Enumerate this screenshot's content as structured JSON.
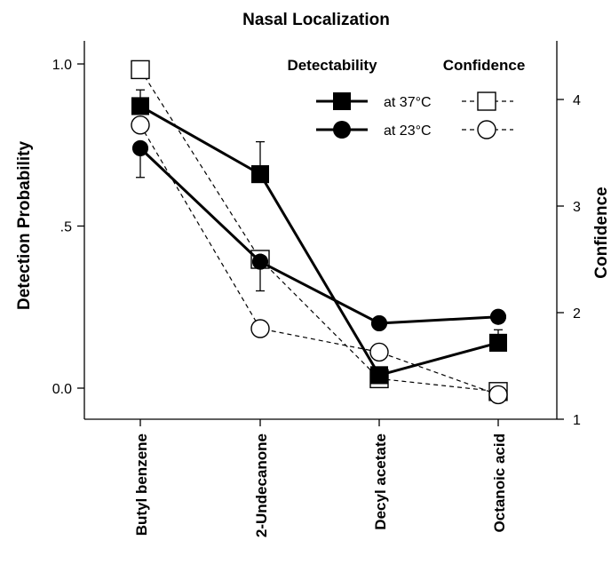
{
  "chart_data": {
    "type": "line",
    "title": "Nasal Localization",
    "ylabel": "Detection Probability",
    "y2label": "Confidence",
    "categories": [
      "Butyl benzene",
      "2-Undecanone",
      "Decyl acetate",
      "Octanoic acid"
    ],
    "ylim": [
      -0.1,
      1.05
    ],
    "y_ticks": [
      1.0,
      0.5,
      0.0
    ],
    "y_tick_labels": [
      "1.0",
      ".5",
      "0.0"
    ],
    "y2lim": [
      1,
      4.4
    ],
    "y2_ticks": [
      1,
      2,
      3,
      4
    ],
    "y2_tick_labels": [
      "1",
      "2",
      "3",
      "4"
    ],
    "legend": {
      "detectability_header": "Detectability",
      "confidence_header": "Confidence",
      "entries": [
        "at 37°C",
        "at 23°C"
      ]
    },
    "series": [
      {
        "name": "at 37°C",
        "measure": "Detectability",
        "axis": "left",
        "marker": "square-filled",
        "line": "solid",
        "values": [
          0.87,
          0.66,
          0.04,
          0.14
        ],
        "error_plus": [
          0.05,
          0.1,
          0.0,
          0.04
        ]
      },
      {
        "name": "at 23°C",
        "measure": "Detectability",
        "axis": "left",
        "marker": "circle-filled",
        "line": "solid",
        "values": [
          0.74,
          0.39,
          0.2,
          0.22
        ],
        "error_minus": [
          0.09,
          0.09,
          0.0,
          0.0
        ]
      },
      {
        "name": "at 37°C",
        "measure": "Confidence",
        "axis": "right",
        "marker": "square-open",
        "line": "dashed",
        "values": [
          4.28,
          2.5,
          1.38,
          1.26
        ]
      },
      {
        "name": "at 23°C",
        "measure": "Confidence",
        "axis": "right",
        "marker": "circle-open",
        "line": "dashed",
        "values": [
          3.76,
          1.85,
          1.63,
          1.23
        ]
      }
    ]
  }
}
